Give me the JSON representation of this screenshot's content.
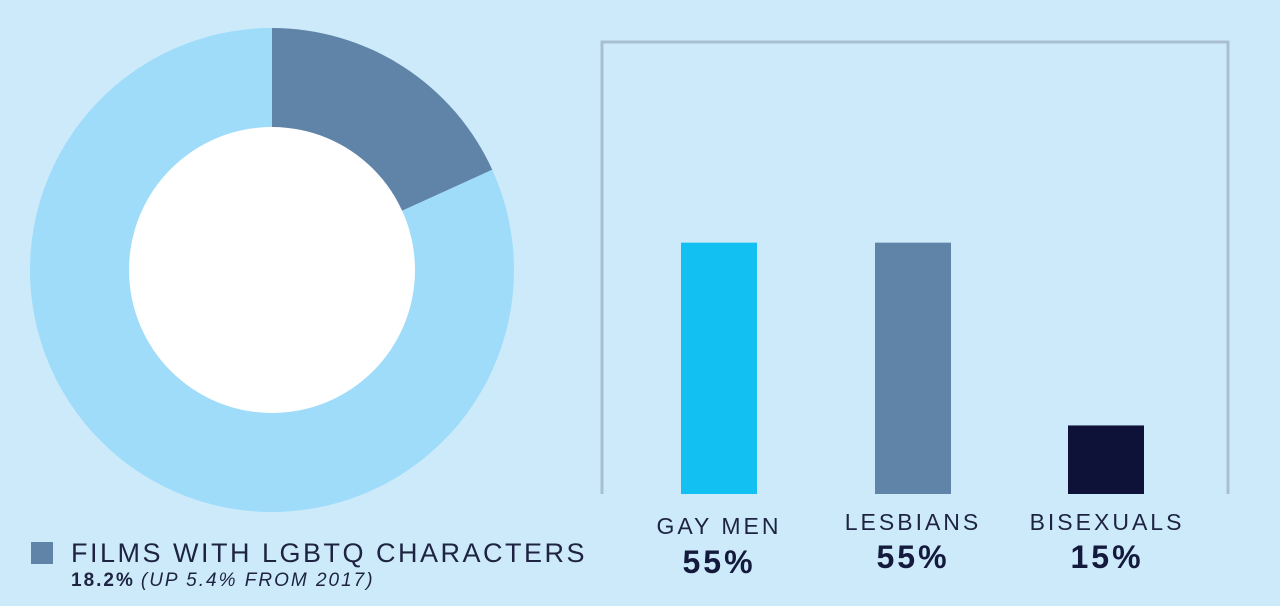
{
  "colors": {
    "background": "#cdeafb",
    "donut_highlight": "#5f84a8",
    "donut_rest": "#9edcf9",
    "donut_hole": "#ffffff",
    "frame": "#a9bed1"
  },
  "chart_data": [
    {
      "type": "pie",
      "slices": [
        {
          "label": "FILMS WITH LGBTQ CHARACTERS",
          "value": 18.2,
          "color": "#5f84a8"
        },
        {
          "label": "",
          "value": 81.8,
          "color": "#9edcf9"
        }
      ],
      "legend": {
        "label": "FILMS WITH LGBTQ CHARACTERS",
        "value_text": "18.2%",
        "note": "(UP 5.4% FROM 2017)",
        "placement": "bottom-left"
      }
    },
    {
      "type": "bar",
      "categories": [
        "GAY MEN",
        "LESBIANS",
        "BISEXUALS"
      ],
      "values": [
        55,
        55,
        15
      ],
      "value_labels": [
        "55%",
        "55%",
        "15%"
      ],
      "colors": [
        "#12c0f2",
        "#5f84a8",
        "#0e1238"
      ],
      "ylim": [
        0,
        100
      ]
    }
  ]
}
